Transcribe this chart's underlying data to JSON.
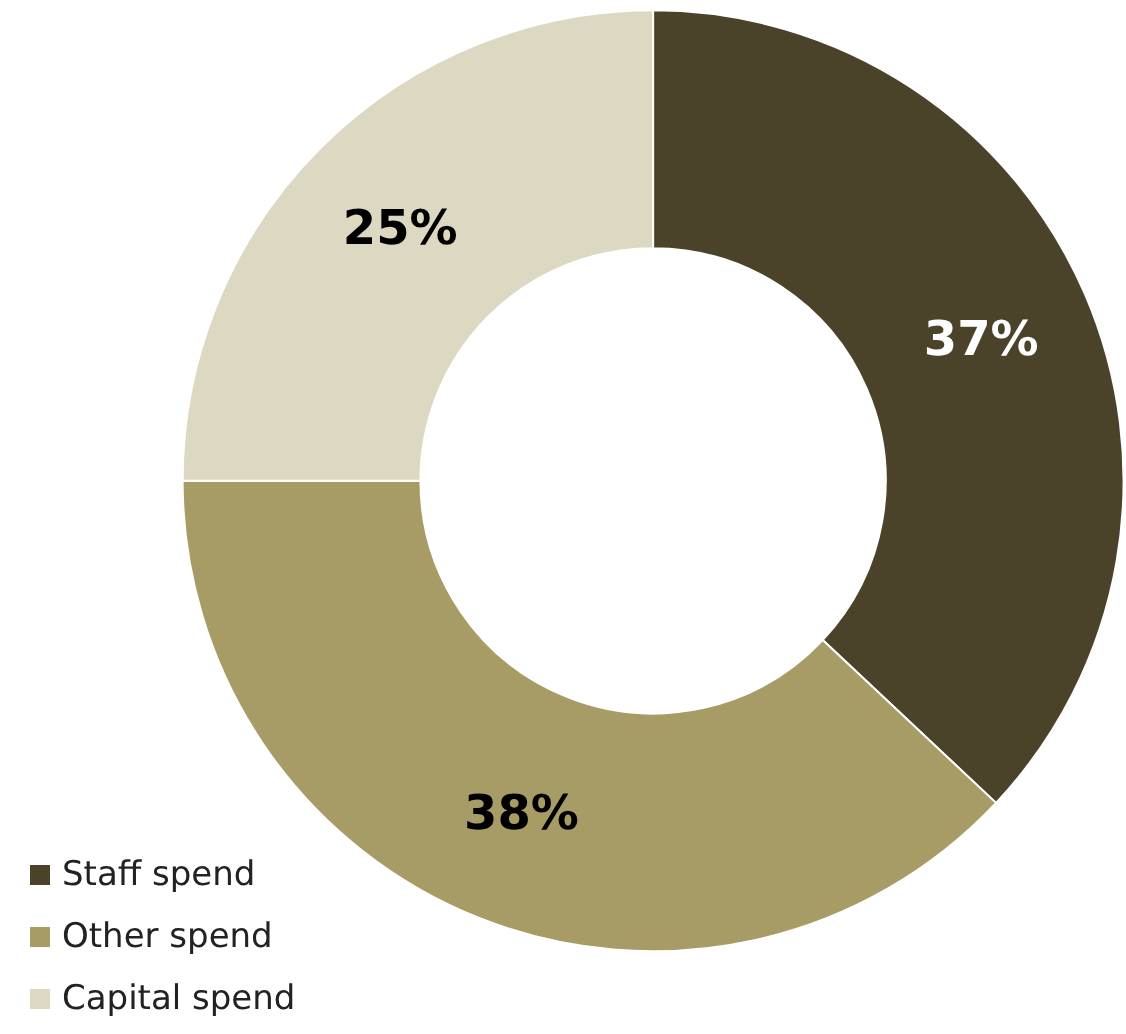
{
  "chart_data": {
    "type": "donut",
    "categories": [
      "Staff spend",
      "Other spend",
      "Capital spend"
    ],
    "values": [
      37,
      38,
      25
    ],
    "colors": [
      "#4a432a",
      "#a89c66",
      "#ddd8c1"
    ],
    "value_labels": [
      "37%",
      "38%",
      "25%"
    ],
    "legend": "bottom left"
  }
}
